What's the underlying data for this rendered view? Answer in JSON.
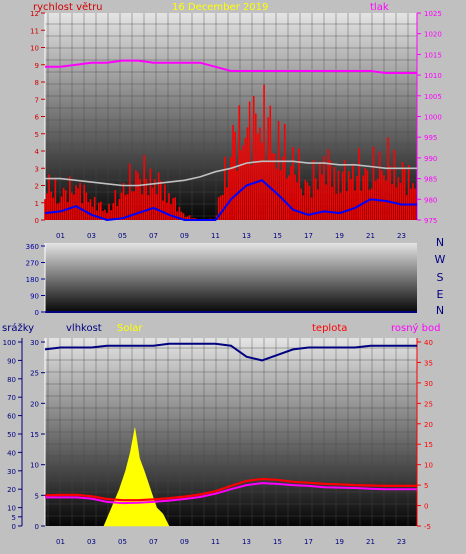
{
  "header": {
    "wind_label": "rychlost větru",
    "date": "16 December 2019",
    "pressure_label": "tlak"
  },
  "colors": {
    "wind_label": "#d00000",
    "date": "#ffff00",
    "pressure": "#ff00ff",
    "wind_gust": "#ff0000",
    "wind_avg": "#0000ff",
    "wind_mean_trend": "#c0c0c0",
    "direction": "#0000a0",
    "humidity": "#000080",
    "solar": "#ffff00",
    "temperature": "#ff0000",
    "dew_point": "#ff00ff",
    "rain_axis": "#000080"
  },
  "x_ticks": [
    "01",
    "03",
    "05",
    "07",
    "09",
    "11",
    "13",
    "15",
    "17",
    "19",
    "21",
    "23"
  ],
  "chart_data": [
    {
      "type": "line",
      "title": "",
      "x": [
        0,
        1,
        2,
        3,
        4,
        5,
        6,
        7,
        8,
        9,
        10,
        11,
        12,
        13,
        14,
        15,
        16,
        17,
        18,
        19,
        20,
        21,
        22,
        23,
        24
      ],
      "y_left": {
        "label": "rychlost větru",
        "ylim": [
          0,
          12
        ],
        "ticks": [
          "0",
          "1",
          "2",
          "3",
          "4",
          "5",
          "6",
          "7",
          "8",
          "9",
          "10",
          "11",
          "12"
        ]
      },
      "y_right": {
        "label": "tlak",
        "ylim": [
          975,
          1025
        ],
        "ticks": [
          "975",
          "980",
          "985",
          "990",
          "995",
          "1000",
          "1005",
          "1010",
          "1015",
          "1020",
          "1025"
        ]
      },
      "series": [
        {
          "name": "tlak",
          "axis": "right",
          "values": [
            1012,
            1012,
            1012.5,
            1013,
            1013,
            1013.5,
            1013.5,
            1013,
            1013,
            1013,
            1013,
            1012,
            1011,
            1011,
            1011,
            1011,
            1011,
            1011,
            1011,
            1011,
            1011,
            1011,
            1010.5,
            1010.5,
            1010.5
          ]
        },
        {
          "name": "",
          "axis": "left",
          "values": [
            2.4,
            2.4,
            2.3,
            2.2,
            2.1,
            2,
            2,
            2.1,
            2.2,
            2.3,
            2.5,
            2.8,
            3,
            3.3,
            3.4,
            3.4,
            3.4,
            3.3,
            3.3,
            3.2,
            3.2,
            3.1,
            3,
            3,
            3
          ]
        },
        {
          "name": "",
          "axis": "left",
          "values": [
            2.2,
            1.5,
            2.1,
            1.2,
            0.6,
            1.8,
            2.8,
            2.5,
            1.5,
            0.3,
            0,
            0.1,
            4.5,
            5.5,
            6.3,
            4.5,
            3.5,
            2,
            3.5,
            2.5,
            3,
            2.8,
            3.6,
            2.8,
            2.2
          ]
        },
        {
          "name": "",
          "axis": "left",
          "values": [
            0.4,
            0.5,
            0.8,
            0.3,
            0,
            0.1,
            0.4,
            0.7,
            0.3,
            0,
            0,
            0,
            1.2,
            2,
            2.3,
            1.5,
            0.6,
            0.3,
            0.5,
            0.4,
            0.7,
            1.2,
            1.1,
            0.9,
            0.9
          ]
        }
      ]
    },
    {
      "type": "line",
      "title": "",
      "y_left": {
        "ylim": [
          0,
          360
        ],
        "ticks": [
          "0",
          "90",
          "180",
          "270",
          "360"
        ]
      },
      "y_right": {
        "ticks": [
          "N",
          "W",
          "S",
          "E",
          "N"
        ]
      },
      "series": [
        {
          "name": "",
          "values": [
            0,
            0
          ]
        }
      ]
    },
    {
      "type": "line",
      "title": "",
      "x": [
        0,
        1,
        2,
        3,
        4,
        5,
        6,
        7,
        8,
        9,
        10,
        11,
        12,
        13,
        14,
        15,
        16,
        17,
        18,
        19,
        20,
        21,
        22,
        23,
        24
      ],
      "y_outer_left": {
        "label": "srážky",
        "ylim": [
          0,
          100
        ],
        "ticks": [
          "0",
          "5",
          "10",
          "20",
          "30",
          "40",
          "50",
          "60",
          "70",
          "80",
          "90",
          "100"
        ]
      },
      "y_inner_left": {
        "label": "vlhkost",
        "ylim": [
          0,
          30
        ],
        "ticks": [
          "0",
          "5",
          "10",
          "15",
          "20",
          "25",
          "30"
        ]
      },
      "y_right": {
        "label": "teplota",
        "ylim": [
          -5,
          40
        ],
        "ticks": [
          "-5",
          "0",
          "5",
          "10",
          "15",
          "20",
          "25",
          "30",
          "35",
          "40"
        ]
      },
      "series": [
        {
          "name": "vlhkost",
          "values": [
            96,
            97,
            97,
            97,
            98,
            98,
            98,
            98,
            99,
            99,
            99,
            99,
            98,
            92,
            90,
            93,
            96,
            97,
            97,
            97,
            97,
            98,
            98,
            98,
            98
          ]
        },
        {
          "name": "teplota",
          "values": [
            2.5,
            2.6,
            2.6,
            2.3,
            1.6,
            1.3,
            1.3,
            1.5,
            1.8,
            2.2,
            2.7,
            3.5,
            4.8,
            6,
            6.5,
            6.3,
            5.8,
            5.6,
            5.3,
            5.2,
            5,
            4.9,
            4.8,
            4.8,
            4.8
          ]
        },
        {
          "name": "rosný bod",
          "values": [
            2,
            2,
            2,
            1.7,
            0.9,
            0.6,
            0.7,
            0.9,
            1.2,
            1.6,
            2.1,
            2.9,
            4,
            5,
            5.5,
            5.3,
            5,
            4.8,
            4.5,
            4.4,
            4.3,
            4.1,
            4,
            4,
            4
          ]
        },
        {
          "name": "Solar",
          "x": [
            3.8,
            4.3,
            4.8,
            5.2,
            5.5,
            5.8,
            6.1,
            6.4,
            6.8,
            7.2,
            7.6,
            8.0
          ],
          "values": [
            0,
            3,
            6,
            9,
            12,
            16,
            11,
            9,
            6,
            3,
            2,
            0
          ]
        }
      ]
    }
  ]
}
